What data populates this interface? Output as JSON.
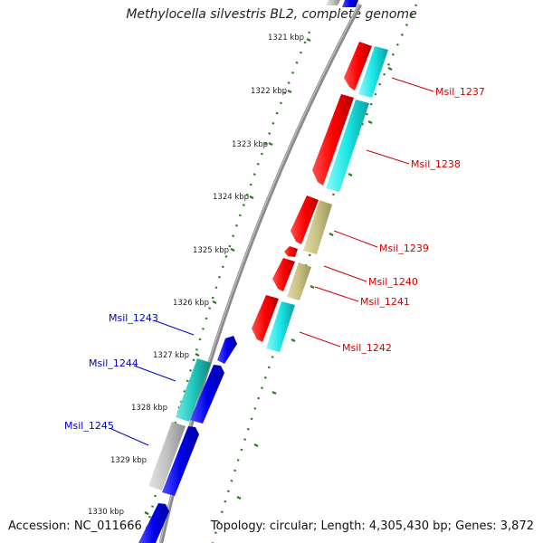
{
  "title": "Methylocella silvestris BL2, complete genome",
  "accession": "Accession: NC_011666",
  "summary": "Topology: circular; Length: 4,305,430 bp; Genes: 3,872",
  "colors": {
    "backbone": "#8a8a8a",
    "tick": "#2a7a1c",
    "red_gene": "#ff0000",
    "cyan_gene": "#19e6e6",
    "tan_gene": "#c8c080",
    "blue_gene": "#0000ee",
    "teal_gene": "#20c8c0",
    "grey_gene": "#c0c0c0",
    "label_red": "#d00000",
    "label_blue": "#0000cc"
  },
  "kbp_labels": [
    "1321 kbp",
    "1322 kbp",
    "1323 kbp",
    "1324 kbp",
    "1325 kbp",
    "1326 kbp",
    "1327 kbp",
    "1328 kbp",
    "1329 kbp",
    "1330 kbp"
  ],
  "gene_labels": {
    "g1237": "Msil_1237",
    "g1238": "Msil_1238",
    "g1239": "Msil_1239",
    "g1240": "Msil_1240",
    "g1241": "Msil_1241",
    "g1242": "Msil_1242",
    "g1243": "Msil_1243",
    "g1244": "Msil_1244",
    "g1245": "Msil_1245"
  }
}
